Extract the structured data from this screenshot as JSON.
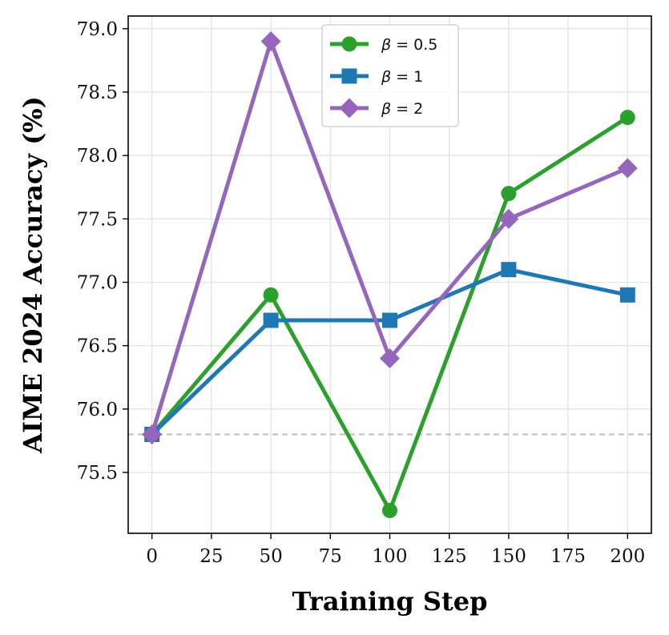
{
  "chart_data": {
    "type": "line",
    "xlabel": "Training Step",
    "ylabel": "AIME 2024 Accuracy (%)",
    "x": [
      0,
      50,
      100,
      150,
      200
    ],
    "xlim": [
      -10,
      210
    ],
    "ylim": [
      75.02,
      79.1
    ],
    "xticks": [
      0,
      25,
      50,
      75,
      100,
      125,
      150,
      175,
      200
    ],
    "yticks": [
      75.5,
      76.0,
      76.5,
      77.0,
      77.5,
      78.0,
      78.5,
      79.0
    ],
    "ytick_format": "0.0",
    "grid": true,
    "legend_placement": "top-center",
    "baseline": {
      "value": 75.8,
      "style": "dashed",
      "color": "#bdbdbd"
    },
    "series": [
      {
        "name": "β = 0.5",
        "legend_symbol": "β",
        "legend_value": "= 0.5",
        "marker": "circle",
        "color": "#2ca02c",
        "values": [
          75.8,
          76.9,
          75.2,
          77.7,
          78.3
        ]
      },
      {
        "name": "β = 1",
        "legend_symbol": "β",
        "legend_value": "= 1",
        "marker": "square",
        "color": "#1f77b4",
        "values": [
          75.8,
          76.7,
          76.7,
          77.1,
          76.9
        ]
      },
      {
        "name": "β = 2",
        "legend_symbol": "β",
        "legend_value": "= 2",
        "marker": "diamond",
        "color": "#9467bd",
        "values": [
          75.8,
          78.9,
          76.4,
          77.5,
          77.9
        ]
      }
    ]
  }
}
